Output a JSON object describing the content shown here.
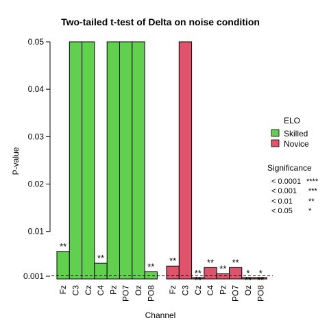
{
  "chart_data": {
    "type": "bar",
    "title": "Two-tailed t-test of Delta on noise condition",
    "xlabel": "Channel",
    "ylabel": "P-value",
    "ylim": [
      0.001,
      0.05
    ],
    "yticks": [
      "0.001",
      "0.01",
      "0.02",
      "0.03",
      "0.04",
      "0.05"
    ],
    "ytick_values": [
      0.001,
      0.01,
      0.02,
      0.03,
      0.04,
      0.05
    ],
    "reference_line": 0.001,
    "groups": [
      {
        "name": "Skilled",
        "color": "#61D04F",
        "categories": [
          "Fz",
          "C3",
          "Cz",
          "C4",
          "Pz",
          "PO7",
          "Oz",
          "PO8"
        ],
        "values": [
          0.0058,
          0.05,
          0.05,
          0.0033,
          0.05,
          0.05,
          0.05,
          0.0015
        ],
        "significance": [
          "**",
          "",
          "",
          "**",
          "",
          "",
          "",
          "**"
        ]
      },
      {
        "name": "Novice",
        "color": "#DF536B",
        "categories": [
          "Fz",
          "C3",
          "Cz",
          "C4",
          "Pz",
          "PO7",
          "Oz",
          "PO8"
        ],
        "values": [
          0.0027,
          0.05,
          0.0008,
          0.0024,
          0.0011,
          0.0024,
          0.0007,
          0.0006
        ],
        "significance": [
          "**",
          "",
          "**\n**",
          "**",
          "**",
          "**",
          "*\n**",
          "*\n**"
        ]
      }
    ],
    "legend": {
      "title": "ELO",
      "position": "right",
      "entries": [
        {
          "label": "Skilled",
          "color": "#61D04F"
        },
        {
          "label": "Novice",
          "color": "#DF536B"
        }
      ]
    },
    "significance_legend": {
      "title": "Significance",
      "rows": [
        {
          "threshold": "< 0.0001",
          "symbol": "****"
        },
        {
          "threshold": "< 0.001",
          "symbol": "***"
        },
        {
          "threshold": "< 0.01",
          "symbol": "**"
        },
        {
          "threshold": "< 0.05",
          "symbol": "*"
        }
      ]
    }
  }
}
